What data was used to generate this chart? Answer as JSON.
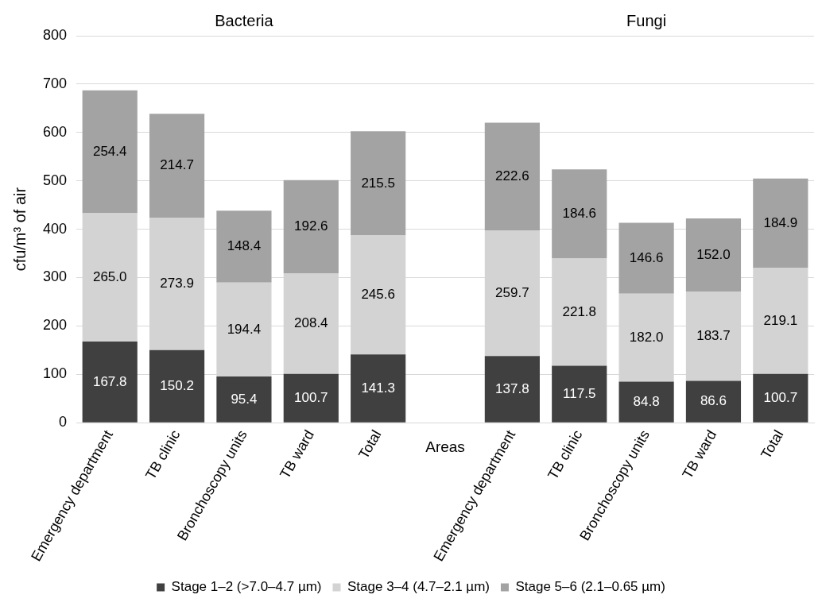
{
  "chart_data": {
    "type": "bar",
    "stacked": true,
    "xlabel": "Areas",
    "ylabel": "cfu/m³ of air",
    "annotations": [
      "Bacteria",
      "Fungi"
    ],
    "categories": [
      "Emergency department",
      "TB clinic",
      "Bronchoscopy units",
      "TB ward",
      "Total",
      null,
      "Emergency department",
      "TB clinic",
      "Bronchoscopy units",
      "TB ward",
      "Total"
    ],
    "series": [
      {
        "name": "Stage 1–2 (>7.0–4.7 µm)",
        "color": "#404040",
        "values": [
          167.8,
          150.2,
          95.4,
          100.7,
          141.3,
          null,
          137.8,
          117.5,
          84.8,
          86.6,
          100.7
        ],
        "value_labels": [
          "167.8",
          "150.2",
          "95.4",
          "100.7",
          "141.3",
          null,
          "137.8",
          "117.5",
          "84.8",
          "86.6",
          "100.7"
        ]
      },
      {
        "name": "Stage 3–4 (4.7–2.1 µm)",
        "color": "#d3d3d3",
        "values": [
          265.0,
          273.9,
          194.4,
          208.4,
          245.6,
          null,
          259.7,
          221.8,
          182.0,
          183.7,
          219.1
        ],
        "value_labels": [
          "265.0",
          "273.9",
          "194.4",
          "208.4",
          "245.6",
          null,
          "259.7",
          "221.8",
          "182.0",
          "183.7",
          "219.1"
        ]
      },
      {
        "name": "Stage 5–6 (2.1–0.65 µm)",
        "color": "#a3a3a3",
        "values": [
          254.4,
          214.7,
          148.4,
          192.6,
          215.5,
          null,
          222.6,
          184.6,
          146.6,
          152.0,
          184.9
        ],
        "value_labels": [
          "254.4",
          "214.7",
          "148.4",
          "192.6",
          "215.5",
          null,
          "222.6",
          "184.6",
          "146.6",
          "152.0",
          "184.9"
        ]
      }
    ],
    "ylim": [
      0,
      800
    ],
    "yticks": [
      0,
      100,
      200,
      300,
      400,
      500,
      600,
      700,
      800
    ],
    "grid": "y",
    "legend": "bottom"
  }
}
